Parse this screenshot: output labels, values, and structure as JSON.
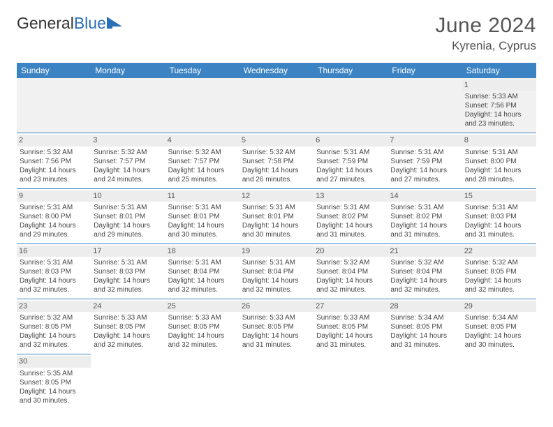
{
  "brand": {
    "part1": "General",
    "part2": "Blue",
    "text_color": "#333333",
    "accent_color": "#2b6fb6"
  },
  "title": "June 2024",
  "location": "Kyrenia, Cyprus",
  "colors": {
    "header_bg": "#3c83c4",
    "header_text": "#ffffff",
    "cell_border": "#3c83c4",
    "daynum_bg": "#ededed",
    "body_text": "#444444",
    "page_bg": "#ffffff"
  },
  "columns": [
    "Sunday",
    "Monday",
    "Tuesday",
    "Wednesday",
    "Thursday",
    "Friday",
    "Saturday"
  ],
  "weeks": [
    [
      null,
      null,
      null,
      null,
      null,
      null,
      {
        "n": "1",
        "sr": "Sunrise: 5:33 AM",
        "ss": "Sunset: 7:56 PM",
        "d1": "Daylight: 14 hours",
        "d2": "and 23 minutes."
      }
    ],
    [
      {
        "n": "2",
        "sr": "Sunrise: 5:32 AM",
        "ss": "Sunset: 7:56 PM",
        "d1": "Daylight: 14 hours",
        "d2": "and 23 minutes."
      },
      {
        "n": "3",
        "sr": "Sunrise: 5:32 AM",
        "ss": "Sunset: 7:57 PM",
        "d1": "Daylight: 14 hours",
        "d2": "and 24 minutes."
      },
      {
        "n": "4",
        "sr": "Sunrise: 5:32 AM",
        "ss": "Sunset: 7:57 PM",
        "d1": "Daylight: 14 hours",
        "d2": "and 25 minutes."
      },
      {
        "n": "5",
        "sr": "Sunrise: 5:32 AM",
        "ss": "Sunset: 7:58 PM",
        "d1": "Daylight: 14 hours",
        "d2": "and 26 minutes."
      },
      {
        "n": "6",
        "sr": "Sunrise: 5:31 AM",
        "ss": "Sunset: 7:59 PM",
        "d1": "Daylight: 14 hours",
        "d2": "and 27 minutes."
      },
      {
        "n": "7",
        "sr": "Sunrise: 5:31 AM",
        "ss": "Sunset: 7:59 PM",
        "d1": "Daylight: 14 hours",
        "d2": "and 27 minutes."
      },
      {
        "n": "8",
        "sr": "Sunrise: 5:31 AM",
        "ss": "Sunset: 8:00 PM",
        "d1": "Daylight: 14 hours",
        "d2": "and 28 minutes."
      }
    ],
    [
      {
        "n": "9",
        "sr": "Sunrise: 5:31 AM",
        "ss": "Sunset: 8:00 PM",
        "d1": "Daylight: 14 hours",
        "d2": "and 29 minutes."
      },
      {
        "n": "10",
        "sr": "Sunrise: 5:31 AM",
        "ss": "Sunset: 8:01 PM",
        "d1": "Daylight: 14 hours",
        "d2": "and 29 minutes."
      },
      {
        "n": "11",
        "sr": "Sunrise: 5:31 AM",
        "ss": "Sunset: 8:01 PM",
        "d1": "Daylight: 14 hours",
        "d2": "and 30 minutes."
      },
      {
        "n": "12",
        "sr": "Sunrise: 5:31 AM",
        "ss": "Sunset: 8:01 PM",
        "d1": "Daylight: 14 hours",
        "d2": "and 30 minutes."
      },
      {
        "n": "13",
        "sr": "Sunrise: 5:31 AM",
        "ss": "Sunset: 8:02 PM",
        "d1": "Daylight: 14 hours",
        "d2": "and 31 minutes."
      },
      {
        "n": "14",
        "sr": "Sunrise: 5:31 AM",
        "ss": "Sunset: 8:02 PM",
        "d1": "Daylight: 14 hours",
        "d2": "and 31 minutes."
      },
      {
        "n": "15",
        "sr": "Sunrise: 5:31 AM",
        "ss": "Sunset: 8:03 PM",
        "d1": "Daylight: 14 hours",
        "d2": "and 31 minutes."
      }
    ],
    [
      {
        "n": "16",
        "sr": "Sunrise: 5:31 AM",
        "ss": "Sunset: 8:03 PM",
        "d1": "Daylight: 14 hours",
        "d2": "and 32 minutes."
      },
      {
        "n": "17",
        "sr": "Sunrise: 5:31 AM",
        "ss": "Sunset: 8:03 PM",
        "d1": "Daylight: 14 hours",
        "d2": "and 32 minutes."
      },
      {
        "n": "18",
        "sr": "Sunrise: 5:31 AM",
        "ss": "Sunset: 8:04 PM",
        "d1": "Daylight: 14 hours",
        "d2": "and 32 minutes."
      },
      {
        "n": "19",
        "sr": "Sunrise: 5:31 AM",
        "ss": "Sunset: 8:04 PM",
        "d1": "Daylight: 14 hours",
        "d2": "and 32 minutes."
      },
      {
        "n": "20",
        "sr": "Sunrise: 5:32 AM",
        "ss": "Sunset: 8:04 PM",
        "d1": "Daylight: 14 hours",
        "d2": "and 32 minutes."
      },
      {
        "n": "21",
        "sr": "Sunrise: 5:32 AM",
        "ss": "Sunset: 8:04 PM",
        "d1": "Daylight: 14 hours",
        "d2": "and 32 minutes."
      },
      {
        "n": "22",
        "sr": "Sunrise: 5:32 AM",
        "ss": "Sunset: 8:05 PM",
        "d1": "Daylight: 14 hours",
        "d2": "and 32 minutes."
      }
    ],
    [
      {
        "n": "23",
        "sr": "Sunrise: 5:32 AM",
        "ss": "Sunset: 8:05 PM",
        "d1": "Daylight: 14 hours",
        "d2": "and 32 minutes."
      },
      {
        "n": "24",
        "sr": "Sunrise: 5:33 AM",
        "ss": "Sunset: 8:05 PM",
        "d1": "Daylight: 14 hours",
        "d2": "and 32 minutes."
      },
      {
        "n": "25",
        "sr": "Sunrise: 5:33 AM",
        "ss": "Sunset: 8:05 PM",
        "d1": "Daylight: 14 hours",
        "d2": "and 32 minutes."
      },
      {
        "n": "26",
        "sr": "Sunrise: 5:33 AM",
        "ss": "Sunset: 8:05 PM",
        "d1": "Daylight: 14 hours",
        "d2": "and 31 minutes."
      },
      {
        "n": "27",
        "sr": "Sunrise: 5:33 AM",
        "ss": "Sunset: 8:05 PM",
        "d1": "Daylight: 14 hours",
        "d2": "and 31 minutes."
      },
      {
        "n": "28",
        "sr": "Sunrise: 5:34 AM",
        "ss": "Sunset: 8:05 PM",
        "d1": "Daylight: 14 hours",
        "d2": "and 31 minutes."
      },
      {
        "n": "29",
        "sr": "Sunrise: 5:34 AM",
        "ss": "Sunset: 8:05 PM",
        "d1": "Daylight: 14 hours",
        "d2": "and 30 minutes."
      }
    ],
    [
      {
        "n": "30",
        "sr": "Sunrise: 5:35 AM",
        "ss": "Sunset: 8:05 PM",
        "d1": "Daylight: 14 hours",
        "d2": "and 30 minutes."
      },
      null,
      null,
      null,
      null,
      null,
      null
    ]
  ]
}
